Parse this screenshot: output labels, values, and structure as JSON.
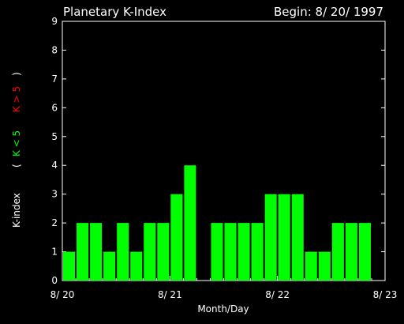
{
  "colors": {
    "background": "#000000",
    "axis": "#ffffff",
    "bar_green": "#00ff00",
    "bar_red": "#ff0000",
    "label_green": "#00ff00",
    "label_red": "#ff0000"
  },
  "chart_data": {
    "type": "bar",
    "title": "Planetary K-Index",
    "begin_label": "Begin: 8/ 20/ 1997",
    "xlabel": "Month/Day",
    "ylabel_parts": [
      "K-index",
      "(",
      "K < 5",
      "K > 5",
      ")"
    ],
    "ylim": [
      0,
      9
    ],
    "y_ticks": [
      "0",
      "1",
      "2",
      "3",
      "4",
      "5",
      "6",
      "7",
      "8",
      "9"
    ],
    "x_range_days": [
      0,
      3
    ],
    "x_ticks": [
      {
        "label": "8/ 20",
        "day": 0
      },
      {
        "label": "8/ 21",
        "day": 1
      },
      {
        "label": "8/ 22",
        "day": 2
      },
      {
        "label": "8/ 23",
        "day": 3
      }
    ],
    "bins_per_day": 8,
    "values": [
      1,
      2,
      2,
      1,
      2,
      1,
      2,
      2,
      3,
      4,
      null,
      2,
      2,
      2,
      2,
      3,
      3,
      3,
      1,
      1,
      2,
      2,
      2,
      null
    ]
  }
}
